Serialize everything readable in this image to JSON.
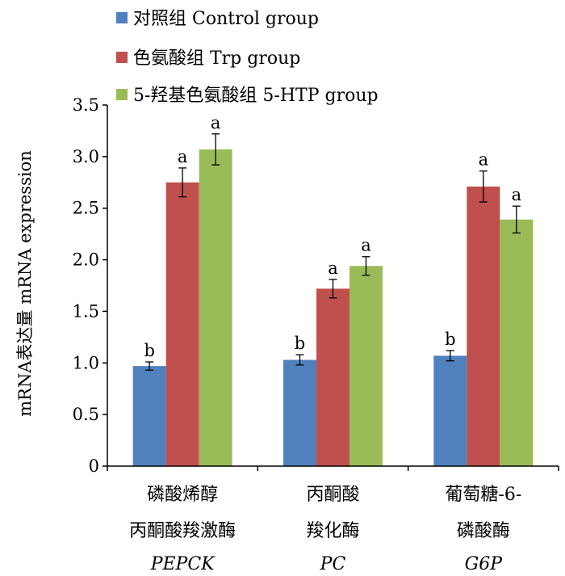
{
  "chart_data": {
    "type": "bar",
    "ylabel": "mRNA表达量 mRNA expression",
    "ylim": [
      0,
      3.5
    ],
    "yticks": [
      0,
      0.5,
      1.0,
      1.5,
      2.0,
      2.5,
      3.0,
      3.5
    ],
    "ytick_labels": [
      "0",
      "0.5",
      "1.0",
      "1.5",
      "2.0",
      "2.5",
      "3.0",
      "3.5"
    ],
    "grid": false,
    "legend_position": "top-left",
    "categories": [
      {
        "lines": [
          "磷酸烯醇",
          "丙酮酸羧激酶"
        ],
        "abbr": "PEPCK"
      },
      {
        "lines": [
          "丙酮酸",
          "羧化酶"
        ],
        "abbr": "PC"
      },
      {
        "lines": [
          "葡萄糖-6-",
          "磷酸酶"
        ],
        "abbr": "G6P"
      }
    ],
    "series": [
      {
        "name": "对照组  Control group",
        "color": "#4F81BD",
        "values": [
          0.97,
          1.03,
          1.07
        ],
        "errors": [
          0.04,
          0.05,
          0.05
        ],
        "sig": [
          "b",
          "b",
          "b"
        ]
      },
      {
        "name": "色氨酸组  Trp group",
        "color": "#C0504D",
        "values": [
          2.75,
          1.72,
          2.71
        ],
        "errors": [
          0.14,
          0.09,
          0.15
        ],
        "sig": [
          "a",
          "a",
          "a"
        ]
      },
      {
        "name": "5-羟基色氨酸组  5-HTP group",
        "color": "#9BBB59",
        "values": [
          3.07,
          1.94,
          2.39
        ],
        "errors": [
          0.15,
          0.09,
          0.13
        ],
        "sig": [
          "a",
          "a",
          "a"
        ]
      }
    ]
  }
}
